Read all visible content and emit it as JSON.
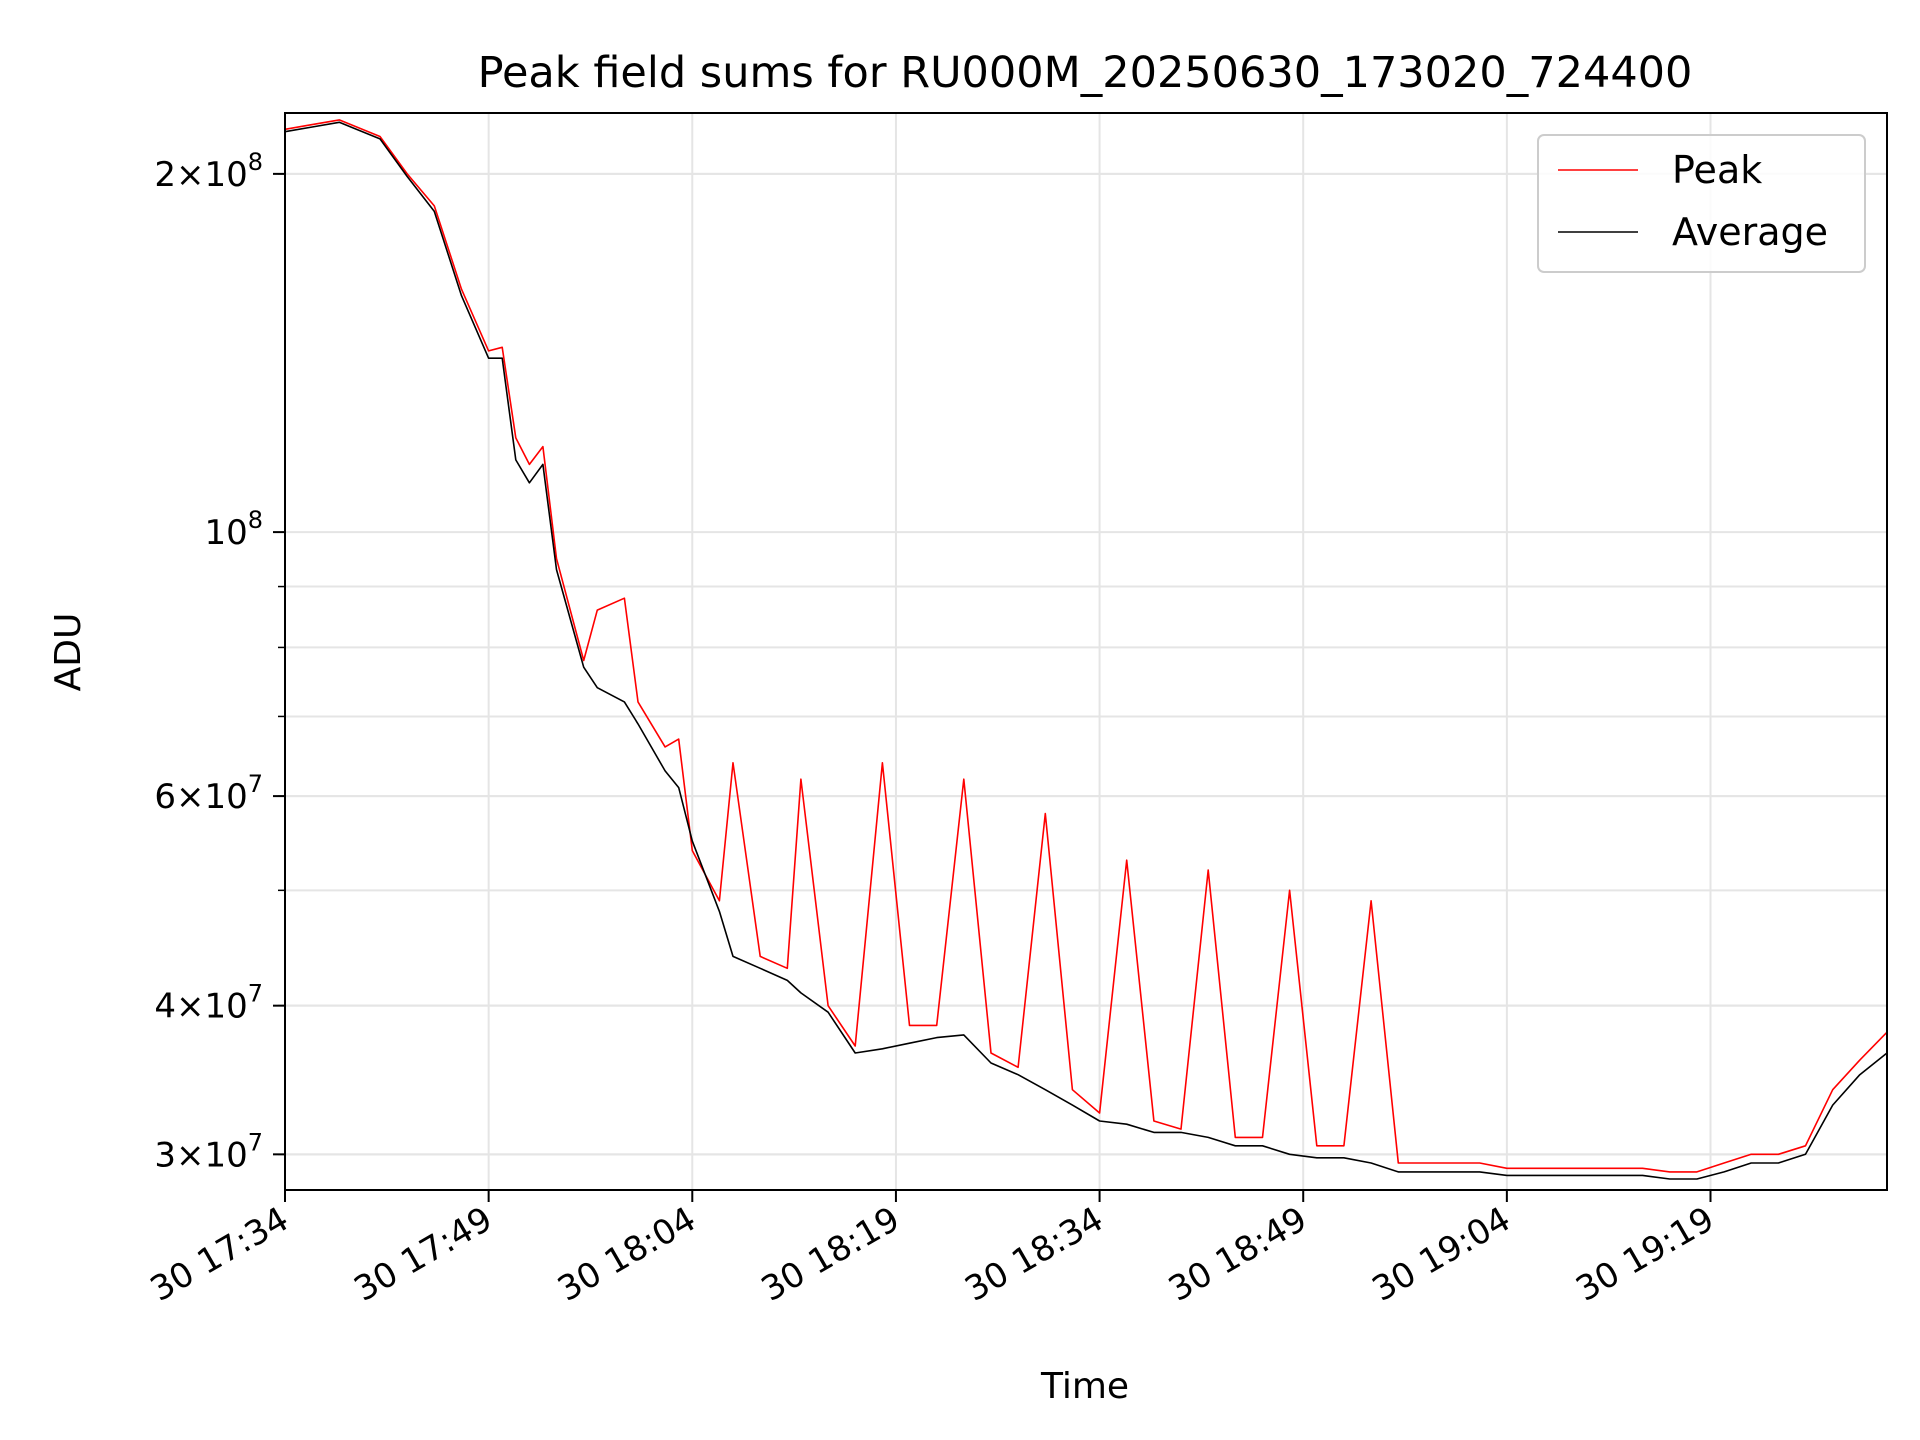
{
  "chart_data": {
    "type": "line",
    "title": "Peak field sums for RU000M_20250630_173020_724400",
    "xlabel": "Time",
    "ylabel": "ADU",
    "yscale": "log",
    "ylim": [
      28000000,
      225000000
    ],
    "xlim": [
      "2025-06-30 17:34",
      "2025-06-30 19:32"
    ],
    "grid": true,
    "legend_placement": "top-right",
    "x_ticks": [
      "30 17:34",
      "30 17:49",
      "30 18:04",
      "30 18:19",
      "30 18:34",
      "30 18:49",
      "30 19:04",
      "30 19:19"
    ],
    "y_ticks": [
      {
        "value": 30000000,
        "label_mant": "3",
        "label_exp": "7"
      },
      {
        "value": 40000000,
        "label_mant": "4",
        "label_exp": "7"
      },
      {
        "value": 60000000,
        "label_mant": "6",
        "label_exp": "7"
      },
      {
        "value": 100000000,
        "label_mant": "",
        "label_exp": "8"
      },
      {
        "value": 200000000,
        "label_mant": "2",
        "label_exp": "8"
      }
    ],
    "series": [
      {
        "name": "Peak",
        "color": "#ff0000",
        "points": [
          [
            "2025-06-30 17:34",
            218000000
          ],
          [
            "2025-06-30 17:36",
            220000000
          ],
          [
            "2025-06-30 17:38",
            222000000
          ],
          [
            "2025-06-30 17:41",
            215000000
          ],
          [
            "2025-06-30 17:43",
            200000000
          ],
          [
            "2025-06-30 17:45",
            188000000
          ],
          [
            "2025-06-30 17:47",
            160000000
          ],
          [
            "2025-06-30 17:49",
            142000000
          ],
          [
            "2025-06-30 17:50",
            143000000
          ],
          [
            "2025-06-30 17:51",
            120000000
          ],
          [
            "2025-06-30 17:52",
            114000000
          ],
          [
            "2025-06-30 17:53",
            118000000
          ],
          [
            "2025-06-30 17:54",
            95000000
          ],
          [
            "2025-06-30 17:56",
            78000000
          ],
          [
            "2025-06-30 17:57",
            86000000
          ],
          [
            "2025-06-30 17:59",
            88000000
          ],
          [
            "2025-06-30 18:00",
            72000000
          ],
          [
            "2025-06-30 18:02",
            66000000
          ],
          [
            "2025-06-30 18:03",
            67000000
          ],
          [
            "2025-06-30 18:04",
            54000000
          ],
          [
            "2025-06-30 18:06",
            49000000
          ],
          [
            "2025-06-30 18:07",
            64000000
          ],
          [
            "2025-06-30 18:09",
            44000000
          ],
          [
            "2025-06-30 18:11",
            43000000
          ],
          [
            "2025-06-30 18:12",
            62000000
          ],
          [
            "2025-06-30 18:14",
            40000000
          ],
          [
            "2025-06-30 18:16",
            37000000
          ],
          [
            "2025-06-30 18:18",
            64000000
          ],
          [
            "2025-06-30 18:20",
            38500000
          ],
          [
            "2025-06-30 18:22",
            38500000
          ],
          [
            "2025-06-30 18:24",
            62000000
          ],
          [
            "2025-06-30 18:26",
            36500000
          ],
          [
            "2025-06-30 18:28",
            35500000
          ],
          [
            "2025-06-30 18:30",
            58000000
          ],
          [
            "2025-06-30 18:32",
            34000000
          ],
          [
            "2025-06-30 18:34",
            32500000
          ],
          [
            "2025-06-30 18:36",
            53000000
          ],
          [
            "2025-06-30 18:38",
            32000000
          ],
          [
            "2025-06-30 18:40",
            31500000
          ],
          [
            "2025-06-30 18:42",
            52000000
          ],
          [
            "2025-06-30 18:44",
            31000000
          ],
          [
            "2025-06-30 18:46",
            31000000
          ],
          [
            "2025-06-30 18:48",
            50000000
          ],
          [
            "2025-06-30 18:50",
            30500000
          ],
          [
            "2025-06-30 18:52",
            30500000
          ],
          [
            "2025-06-30 18:54",
            49000000
          ],
          [
            "2025-06-30 18:56",
            29500000
          ],
          [
            "2025-06-30 18:58",
            29500000
          ],
          [
            "2025-06-30 19:00",
            29500000
          ],
          [
            "2025-06-30 19:02",
            29500000
          ],
          [
            "2025-06-30 19:04",
            29200000
          ],
          [
            "2025-06-30 19:06",
            29200000
          ],
          [
            "2025-06-30 19:08",
            29200000
          ],
          [
            "2025-06-30 19:10",
            29200000
          ],
          [
            "2025-06-30 19:12",
            29200000
          ],
          [
            "2025-06-30 19:14",
            29200000
          ],
          [
            "2025-06-30 19:16",
            29000000
          ],
          [
            "2025-06-30 19:18",
            29000000
          ],
          [
            "2025-06-30 19:20",
            29500000
          ],
          [
            "2025-06-30 19:22",
            30000000
          ],
          [
            "2025-06-30 19:24",
            30000000
          ],
          [
            "2025-06-30 19:26",
            30500000
          ],
          [
            "2025-06-30 19:28",
            34000000
          ],
          [
            "2025-06-30 19:30",
            36000000
          ],
          [
            "2025-06-30 19:32",
            38000000
          ]
        ]
      },
      {
        "name": "Average",
        "color": "#000000",
        "points": [
          [
            "2025-06-30 17:34",
            217000000
          ],
          [
            "2025-06-30 17:36",
            219000000
          ],
          [
            "2025-06-30 17:38",
            221000000
          ],
          [
            "2025-06-30 17:41",
            214000000
          ],
          [
            "2025-06-30 17:43",
            199000000
          ],
          [
            "2025-06-30 17:45",
            186000000
          ],
          [
            "2025-06-30 17:47",
            158000000
          ],
          [
            "2025-06-30 17:49",
            140000000
          ],
          [
            "2025-06-30 17:50",
            140000000
          ],
          [
            "2025-06-30 17:51",
            115000000
          ],
          [
            "2025-06-30 17:52",
            110000000
          ],
          [
            "2025-06-30 17:53",
            114000000
          ],
          [
            "2025-06-30 17:54",
            93000000
          ],
          [
            "2025-06-30 17:56",
            77000000
          ],
          [
            "2025-06-30 17:57",
            74000000
          ],
          [
            "2025-06-30 17:59",
            72000000
          ],
          [
            "2025-06-30 18:00",
            69000000
          ],
          [
            "2025-06-30 18:02",
            63000000
          ],
          [
            "2025-06-30 18:03",
            61000000
          ],
          [
            "2025-06-30 18:04",
            55000000
          ],
          [
            "2025-06-30 18:06",
            48000000
          ],
          [
            "2025-06-30 18:07",
            44000000
          ],
          [
            "2025-06-30 18:09",
            43000000
          ],
          [
            "2025-06-30 18:11",
            42000000
          ],
          [
            "2025-06-30 18:12",
            41000000
          ],
          [
            "2025-06-30 18:14",
            39500000
          ],
          [
            "2025-06-30 18:16",
            36500000
          ],
          [
            "2025-06-30 18:18",
            36800000
          ],
          [
            "2025-06-30 18:20",
            37200000
          ],
          [
            "2025-06-30 18:22",
            37600000
          ],
          [
            "2025-06-30 18:24",
            37800000
          ],
          [
            "2025-06-30 18:26",
            35800000
          ],
          [
            "2025-06-30 18:28",
            35000000
          ],
          [
            "2025-06-30 18:30",
            34000000
          ],
          [
            "2025-06-30 18:32",
            33000000
          ],
          [
            "2025-06-30 18:34",
            32000000
          ],
          [
            "2025-06-30 18:36",
            31800000
          ],
          [
            "2025-06-30 18:38",
            31300000
          ],
          [
            "2025-06-30 18:40",
            31300000
          ],
          [
            "2025-06-30 18:42",
            31000000
          ],
          [
            "2025-06-30 18:44",
            30500000
          ],
          [
            "2025-06-30 18:46",
            30500000
          ],
          [
            "2025-06-30 18:48",
            30000000
          ],
          [
            "2025-06-30 18:50",
            29800000
          ],
          [
            "2025-06-30 18:52",
            29800000
          ],
          [
            "2025-06-30 18:54",
            29500000
          ],
          [
            "2025-06-30 18:56",
            29000000
          ],
          [
            "2025-06-30 18:58",
            29000000
          ],
          [
            "2025-06-30 19:00",
            29000000
          ],
          [
            "2025-06-30 19:02",
            29000000
          ],
          [
            "2025-06-30 19:04",
            28800000
          ],
          [
            "2025-06-30 19:06",
            28800000
          ],
          [
            "2025-06-30 19:08",
            28800000
          ],
          [
            "2025-06-30 19:10",
            28800000
          ],
          [
            "2025-06-30 19:12",
            28800000
          ],
          [
            "2025-06-30 19:14",
            28800000
          ],
          [
            "2025-06-30 19:16",
            28600000
          ],
          [
            "2025-06-30 19:18",
            28600000
          ],
          [
            "2025-06-30 19:20",
            29000000
          ],
          [
            "2025-06-30 19:22",
            29500000
          ],
          [
            "2025-06-30 19:24",
            29500000
          ],
          [
            "2025-06-30 19:26",
            30000000
          ],
          [
            "2025-06-30 19:28",
            33000000
          ],
          [
            "2025-06-30 19:30",
            35000000
          ],
          [
            "2025-06-30 19:32",
            36500000
          ]
        ]
      }
    ]
  }
}
